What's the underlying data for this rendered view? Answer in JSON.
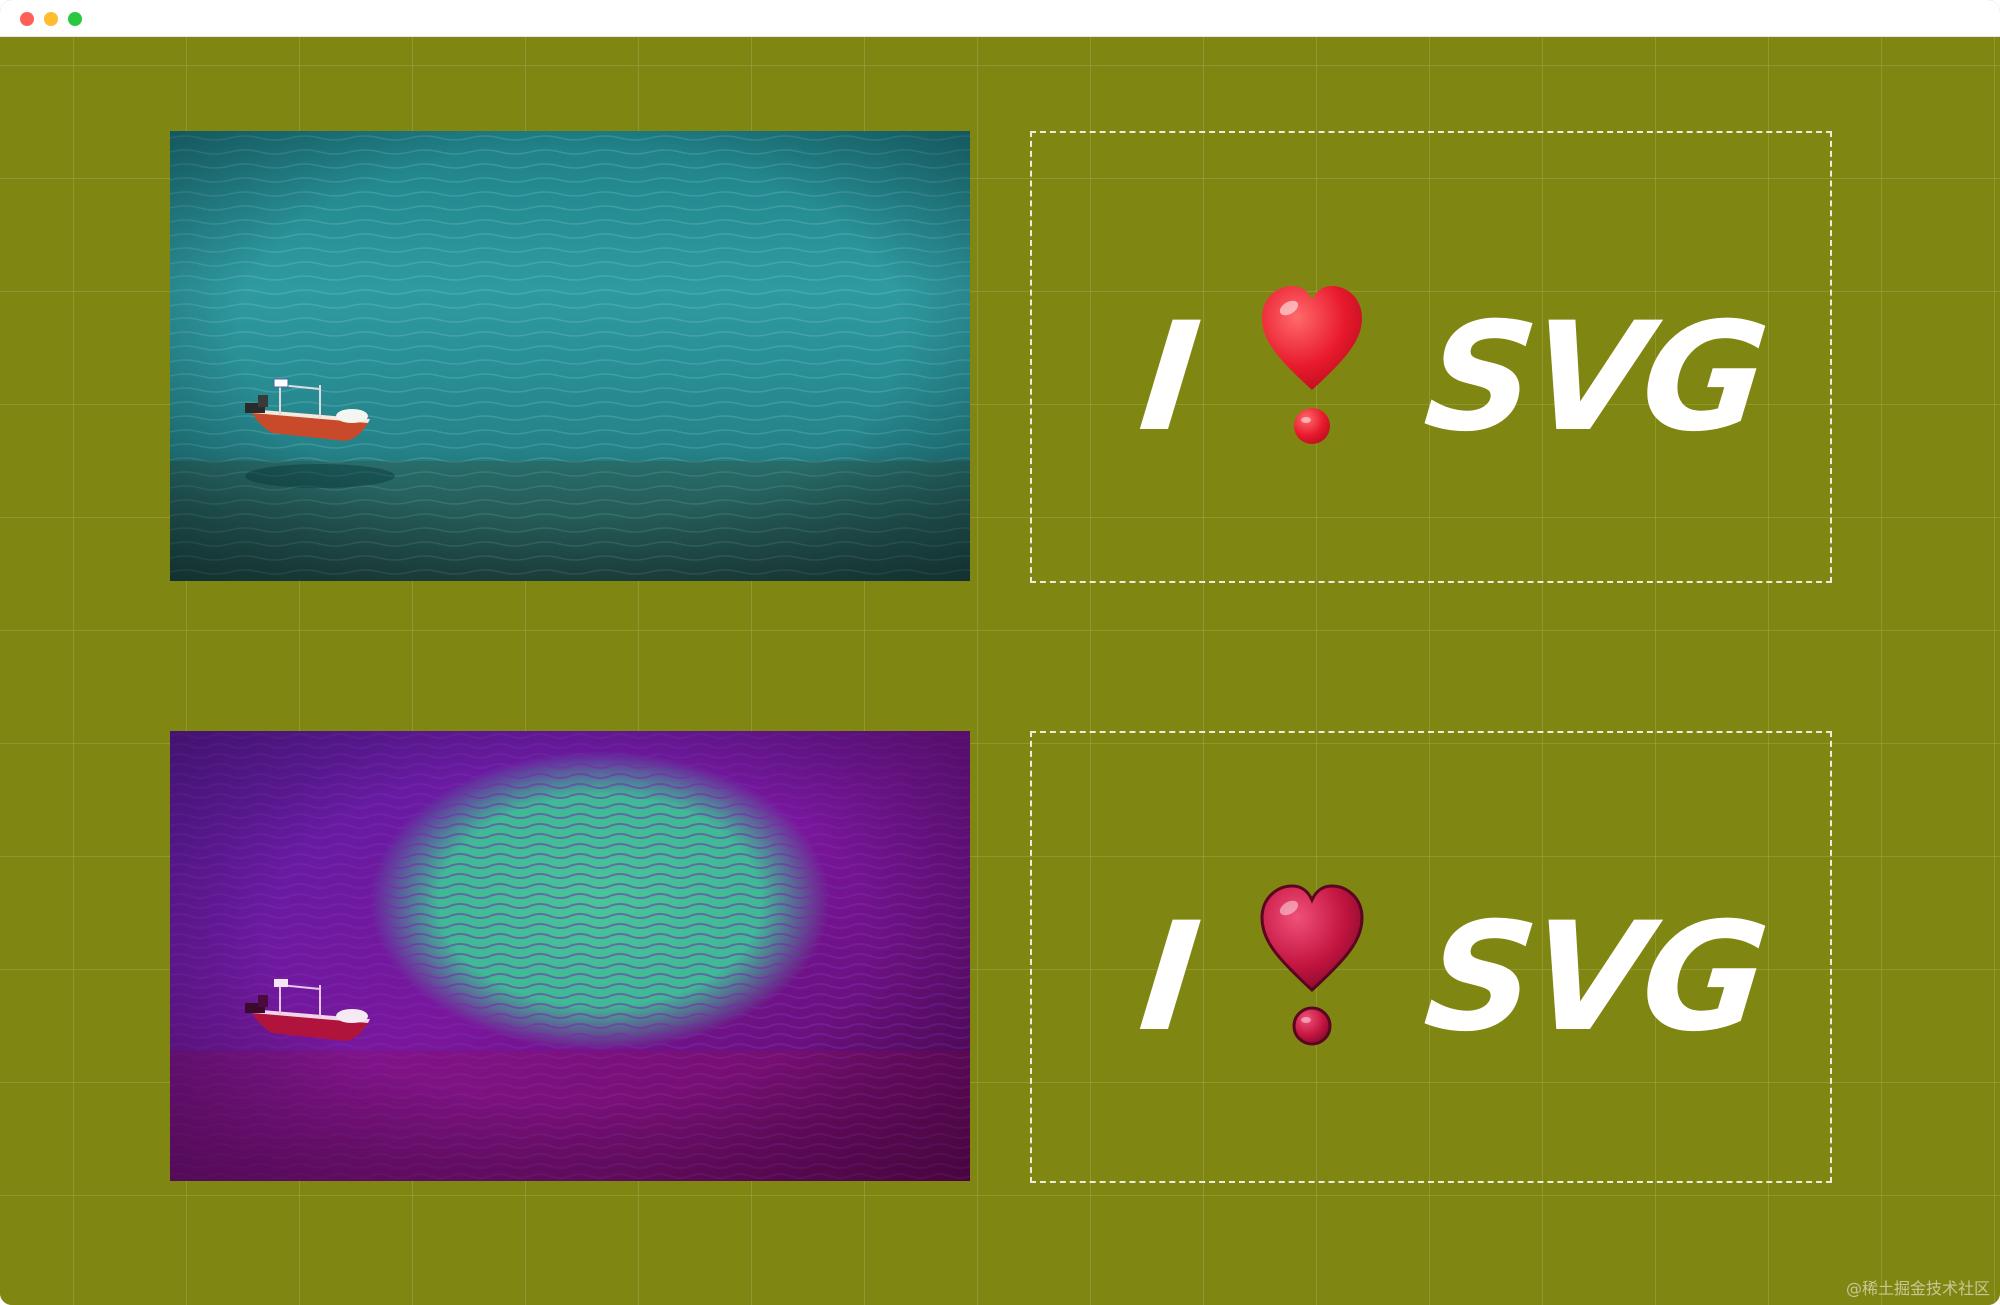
{
  "window": {
    "controls": [
      "close",
      "minimize",
      "zoom"
    ],
    "colors": {
      "close": "#fe5f57",
      "minimize": "#febc2e",
      "zoom": "#28c840",
      "canvas_background": "#808612"
    }
  },
  "panels": [
    {
      "photo": {
        "subject": "red-white fishing boat on turquoise sea",
        "filter": "none"
      },
      "logo": {
        "word_left": "I",
        "emoji": "heavy-heart-exclamation-icon",
        "word_right": "SVG",
        "emoji_color": "#e8192c"
      }
    },
    {
      "photo": {
        "subject": "red-white fishing boat on purple-filtered sea with green patch",
        "filter": "svg-color-filter"
      },
      "logo": {
        "word_left": "I",
        "emoji": "heavy-heart-exclamation-icon",
        "word_right": "SVG",
        "emoji_color": "#c2143f"
      }
    }
  ],
  "watermark": "@稀土掘金技术社区"
}
